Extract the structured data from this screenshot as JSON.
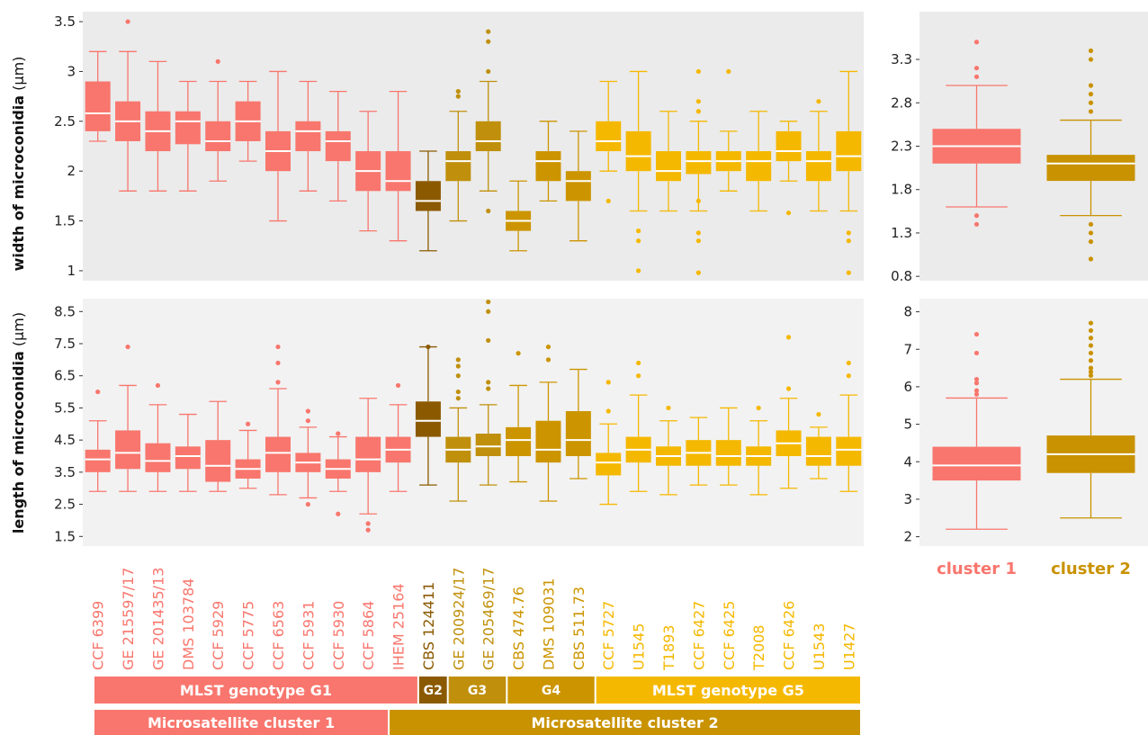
{
  "colors": {
    "G1": "#F8766D",
    "G2": "#8B5A00",
    "G3": "#C0900C",
    "G4": "#CC9500",
    "G5": "#F5B800",
    "C1": "#F8766D",
    "C2": "#C99200",
    "panel": "#EBEBEB",
    "panel2": "#F2F2F2"
  },
  "chart_data": [
    {
      "type": "box",
      "ylabel_bold": "width of microconidia",
      "ylabel_unit": " (µm)",
      "ylim": [
        0.9,
        3.6
      ],
      "yticks": [
        1,
        1.5,
        2,
        2.5,
        3,
        3.5
      ],
      "ytick_labels": [
        "1",
        "1.5",
        "2",
        "2.5",
        "3",
        "3.5"
      ],
      "categories": [
        "CCF 6399",
        "GE 215597/17",
        "GE 201435/13",
        "DMS 103784",
        "CCF  5929",
        "CCF 5775",
        "CCF 6563",
        "CCF 5931",
        "CCF 5930",
        "CCF 5864",
        "IHEM 25164",
        "CBS 124411",
        "GE 200924/17",
        "GE 205469/17",
        "CBS 474.76",
        "DMS 109031",
        "CBS 511.73",
        "CCF 5727",
        "U1545",
        "T1893",
        "CCF 6427",
        "CCF 6425",
        "T2008",
        "CCF 6426",
        "U1543",
        "U1427"
      ],
      "genotype": [
        "G1",
        "G1",
        "G1",
        "G1",
        "G1",
        "G1",
        "G1",
        "G1",
        "G1",
        "G1",
        "G1",
        "G2",
        "G3",
        "G3",
        "G4",
        "G4",
        "G4",
        "G5",
        "G5",
        "G5",
        "G5",
        "G5",
        "G5",
        "G5",
        "G5",
        "G5"
      ],
      "boxes": [
        {
          "min": 2.3,
          "q1": 2.4,
          "median": 2.58,
          "q3": 2.9,
          "max": 3.2,
          "outliers": []
        },
        {
          "min": 1.8,
          "q1": 2.3,
          "median": 2.5,
          "q3": 2.7,
          "max": 3.2,
          "outliers": [
            3.5
          ]
        },
        {
          "min": 1.8,
          "q1": 2.2,
          "median": 2.4,
          "q3": 2.6,
          "max": 3.1,
          "outliers": []
        },
        {
          "min": 1.8,
          "q1": 2.27,
          "median": 2.5,
          "q3": 2.6,
          "max": 2.9,
          "outliers": []
        },
        {
          "min": 1.9,
          "q1": 2.2,
          "median": 2.3,
          "q3": 2.5,
          "max": 2.9,
          "outliers": [
            3.1
          ]
        },
        {
          "min": 2.1,
          "q1": 2.3,
          "median": 2.5,
          "q3": 2.7,
          "max": 2.9,
          "outliers": []
        },
        {
          "min": 1.5,
          "q1": 2.0,
          "median": 2.2,
          "q3": 2.4,
          "max": 3.0,
          "outliers": []
        },
        {
          "min": 1.8,
          "q1": 2.2,
          "median": 2.4,
          "q3": 2.5,
          "max": 2.9,
          "outliers": []
        },
        {
          "min": 1.7,
          "q1": 2.1,
          "median": 2.3,
          "q3": 2.4,
          "max": 2.8,
          "outliers": []
        },
        {
          "min": 1.4,
          "q1": 1.8,
          "median": 2.0,
          "q3": 2.2,
          "max": 2.6,
          "outliers": []
        },
        {
          "min": 1.3,
          "q1": 1.8,
          "median": 1.9,
          "q3": 2.2,
          "max": 2.8,
          "outliers": []
        },
        {
          "min": 1.2,
          "q1": 1.6,
          "median": 1.7,
          "q3": 1.9,
          "max": 2.2,
          "outliers": []
        },
        {
          "min": 1.5,
          "q1": 1.9,
          "median": 2.1,
          "q3": 2.2,
          "max": 2.6,
          "outliers": [
            2.75,
            2.8
          ]
        },
        {
          "min": 1.8,
          "q1": 2.2,
          "median": 2.3,
          "q3": 2.5,
          "max": 2.9,
          "outliers": [
            1.6,
            3.0,
            3.3,
            3.4
          ]
        },
        {
          "min": 1.2,
          "q1": 1.4,
          "median": 1.5,
          "q3": 1.6,
          "max": 1.9,
          "outliers": []
        },
        {
          "min": 1.7,
          "q1": 1.9,
          "median": 2.1,
          "q3": 2.2,
          "max": 2.5,
          "outliers": []
        },
        {
          "min": 1.3,
          "q1": 1.7,
          "median": 1.9,
          "q3": 2.0,
          "max": 2.4,
          "outliers": []
        },
        {
          "min": 2.0,
          "q1": 2.2,
          "median": 2.3,
          "q3": 2.5,
          "max": 2.9,
          "outliers": [
            1.7
          ]
        },
        {
          "min": 1.6,
          "q1": 2.0,
          "median": 2.15,
          "q3": 2.4,
          "max": 3.0,
          "outliers": [
            1.0,
            1.3,
            1.4
          ]
        },
        {
          "min": 1.6,
          "q1": 1.9,
          "median": 2.0,
          "q3": 2.2,
          "max": 2.6,
          "outliers": []
        },
        {
          "min": 1.6,
          "q1": 1.97,
          "median": 2.1,
          "q3": 2.2,
          "max": 2.5,
          "outliers": [
            0.98,
            1.3,
            1.38,
            1.7,
            2.6,
            2.7,
            3.0
          ]
        },
        {
          "min": 1.8,
          "q1": 2.0,
          "median": 2.1,
          "q3": 2.2,
          "max": 2.4,
          "outliers": [
            3.0
          ]
        },
        {
          "min": 1.6,
          "q1": 1.9,
          "median": 2.1,
          "q3": 2.2,
          "max": 2.6,
          "outliers": []
        },
        {
          "min": 1.9,
          "q1": 2.1,
          "median": 2.2,
          "q3": 2.4,
          "max": 2.5,
          "outliers": [
            1.58
          ]
        },
        {
          "min": 1.6,
          "q1": 1.9,
          "median": 2.1,
          "q3": 2.2,
          "max": 2.6,
          "outliers": [
            2.7
          ]
        },
        {
          "min": 1.6,
          "q1": 2.0,
          "median": 2.15,
          "q3": 2.4,
          "max": 3.0,
          "outliers": [
            0.98,
            1.3,
            1.38
          ]
        }
      ]
    },
    {
      "type": "box",
      "ylabel_bold": "length of microconidia",
      "ylabel_unit": " (µm)",
      "ylim": [
        1.2,
        8.9
      ],
      "yticks": [
        1.5,
        2.5,
        3.5,
        4.5,
        5.5,
        6.5,
        7.5,
        8.5
      ],
      "ytick_labels": [
        "1.5",
        "2.5",
        "3.5",
        "4.5",
        "5.5",
        "6.5",
        "7.5",
        "8.5"
      ],
      "boxes": [
        {
          "min": 2.9,
          "q1": 3.5,
          "median": 3.9,
          "q3": 4.2,
          "max": 5.1,
          "outliers": [
            6.0
          ]
        },
        {
          "min": 2.9,
          "q1": 3.6,
          "median": 4.1,
          "q3": 4.8,
          "max": 6.2,
          "outliers": [
            7.4
          ]
        },
        {
          "min": 2.9,
          "q1": 3.5,
          "median": 3.85,
          "q3": 4.4,
          "max": 5.6,
          "outliers": [
            6.2
          ]
        },
        {
          "min": 2.9,
          "q1": 3.6,
          "median": 4.0,
          "q3": 4.3,
          "max": 5.3,
          "outliers": []
        },
        {
          "min": 2.9,
          "q1": 3.2,
          "median": 3.7,
          "q3": 4.5,
          "max": 5.7,
          "outliers": []
        },
        {
          "min": 3.0,
          "q1": 3.3,
          "median": 3.6,
          "q3": 3.9,
          "max": 4.8,
          "outliers": [
            5.0
          ]
        },
        {
          "min": 2.8,
          "q1": 3.5,
          "median": 4.1,
          "q3": 4.6,
          "max": 6.1,
          "outliers": [
            6.3,
            6.9,
            7.4
          ]
        },
        {
          "min": 2.7,
          "q1": 3.5,
          "median": 3.8,
          "q3": 4.1,
          "max": 4.9,
          "outliers": [
            2.5,
            5.1,
            5.4
          ]
        },
        {
          "min": 2.9,
          "q1": 3.3,
          "median": 3.6,
          "q3": 3.9,
          "max": 4.6,
          "outliers": [
            2.2,
            4.7
          ]
        },
        {
          "min": 2.2,
          "q1": 3.5,
          "median": 3.9,
          "q3": 4.6,
          "max": 5.8,
          "outliers": [
            1.7,
            1.9
          ]
        },
        {
          "min": 2.9,
          "q1": 3.8,
          "median": 4.2,
          "q3": 4.6,
          "max": 5.6,
          "outliers": [
            6.2
          ]
        },
        {
          "min": 3.1,
          "q1": 4.6,
          "median": 5.1,
          "q3": 5.7,
          "max": 7.4,
          "outliers": [
            7.4
          ]
        },
        {
          "min": 2.6,
          "q1": 3.8,
          "median": 4.2,
          "q3": 4.6,
          "max": 5.5,
          "outliers": [
            5.8,
            6.0,
            6.5,
            6.8,
            7.0
          ]
        },
        {
          "min": 3.1,
          "q1": 4.0,
          "median": 4.3,
          "q3": 4.7,
          "max": 5.6,
          "outliers": [
            6.1,
            6.3,
            7.6,
            8.5,
            8.8
          ]
        },
        {
          "min": 3.2,
          "q1": 4.0,
          "median": 4.5,
          "q3": 4.9,
          "max": 6.2,
          "outliers": [
            7.2
          ]
        },
        {
          "min": 2.6,
          "q1": 3.8,
          "median": 4.2,
          "q3": 5.1,
          "max": 6.3,
          "outliers": [
            7.0,
            7.4
          ]
        },
        {
          "min": 3.3,
          "q1": 4.0,
          "median": 4.5,
          "q3": 5.4,
          "max": 6.7,
          "outliers": []
        },
        {
          "min": 2.5,
          "q1": 3.4,
          "median": 3.8,
          "q3": 4.1,
          "max": 5.0,
          "outliers": [
            5.4,
            6.3
          ]
        },
        {
          "min": 2.9,
          "q1": 3.8,
          "median": 4.2,
          "q3": 4.6,
          "max": 5.9,
          "outliers": [
            6.5,
            6.9
          ]
        },
        {
          "min": 2.8,
          "q1": 3.7,
          "median": 4.0,
          "q3": 4.3,
          "max": 5.1,
          "outliers": [
            5.5
          ]
        },
        {
          "min": 3.1,
          "q1": 3.7,
          "median": 4.1,
          "q3": 4.5,
          "max": 5.2,
          "outliers": []
        },
        {
          "min": 3.1,
          "q1": 3.7,
          "median": 4.0,
          "q3": 4.5,
          "max": 5.5,
          "outliers": []
        },
        {
          "min": 2.8,
          "q1": 3.7,
          "median": 4.0,
          "q3": 4.3,
          "max": 5.1,
          "outliers": [
            5.5
          ]
        },
        {
          "min": 3.0,
          "q1": 4.0,
          "median": 4.4,
          "q3": 4.8,
          "max": 5.8,
          "outliers": [
            6.1,
            7.7
          ]
        },
        {
          "min": 3.3,
          "q1": 3.7,
          "median": 4.0,
          "q3": 4.6,
          "max": 4.9,
          "outliers": [
            5.3
          ]
        },
        {
          "min": 2.9,
          "q1": 3.7,
          "median": 4.2,
          "q3": 4.6,
          "max": 5.9,
          "outliers": [
            6.5,
            6.9
          ]
        }
      ]
    },
    {
      "type": "box",
      "ylim": [
        0.75,
        3.85
      ],
      "yticks": [
        0.8,
        1.3,
        1.8,
        2.3,
        2.8,
        3.3
      ],
      "ytick_labels": [
        "0.8",
        "1.3",
        "1.8",
        "2.3",
        "2.8",
        "3.3"
      ],
      "categories": [
        "cluster 1",
        "cluster 2"
      ],
      "boxes": [
        {
          "min": 1.6,
          "q1": 2.1,
          "median": 2.3,
          "q3": 2.5,
          "max": 3.0,
          "outliers": [
            1.4,
            1.5,
            3.1,
            3.2,
            3.5
          ]
        },
        {
          "min": 1.5,
          "q1": 1.9,
          "median": 2.1,
          "q3": 2.2,
          "max": 2.6,
          "outliers": [
            1.0,
            1.2,
            1.3,
            1.4,
            2.7,
            2.8,
            2.9,
            3.0,
            3.3,
            3.4
          ]
        }
      ]
    },
    {
      "type": "box",
      "ylim": [
        1.75,
        8.35
      ],
      "yticks": [
        2,
        3,
        4,
        5,
        6,
        7,
        8
      ],
      "ytick_labels": [
        "2",
        "3",
        "4",
        "5",
        "6",
        "7",
        "8"
      ],
      "boxes": [
        {
          "min": 2.2,
          "q1": 3.5,
          "median": 3.9,
          "q3": 4.4,
          "max": 5.7,
          "outliers": [
            5.8,
            5.9,
            6.1,
            6.2,
            6.9,
            7.4
          ]
        },
        {
          "min": 2.5,
          "q1": 3.7,
          "median": 4.2,
          "q3": 4.7,
          "max": 6.2,
          "outliers": [
            6.3,
            6.4,
            6.5,
            6.7,
            6.9,
            7.1,
            7.3,
            7.5,
            7.7
          ]
        }
      ]
    }
  ],
  "genotype_bands": [
    {
      "label": "MLST genotype G1",
      "from": 0,
      "to": 10,
      "color": "G1"
    },
    {
      "label": "G2",
      "from": 11,
      "to": 11,
      "color": "G2"
    },
    {
      "label": "G3",
      "from": 12,
      "to": 13,
      "color": "G3"
    },
    {
      "label": "G4",
      "from": 14,
      "to": 16,
      "color": "G4"
    },
    {
      "label": "MLST genotype G5",
      "from": 17,
      "to": 25,
      "color": "G5"
    }
  ],
  "cluster_bands": [
    {
      "label": "Microsatellite cluster 1",
      "from": 0,
      "to": 9,
      "color": "C1"
    },
    {
      "label": "Microsatellite cluster 2",
      "from": 10,
      "to": 25,
      "color": "C2"
    }
  ]
}
